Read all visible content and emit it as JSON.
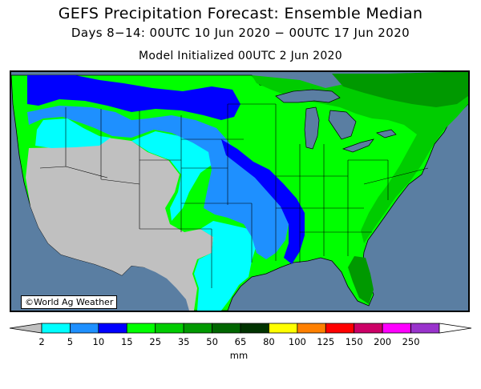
{
  "title": "GEFS Precipitation Forecast: Ensemble Median",
  "subtitle": "Days 8−14: 00UTC 10 Jun 2020 − 00UTC 17 Jun 2020",
  "init_line": "Model Initialized 00UTC 2 Jun 2020",
  "credit": "©World Ag Weather",
  "colorbar": {
    "unit": "mm",
    "ticks": [
      "2",
      "5",
      "10",
      "15",
      "25",
      "35",
      "50",
      "65",
      "80",
      "100",
      "125",
      "150",
      "200",
      "250"
    ],
    "colors": [
      "#00ffff",
      "#1e90ff",
      "#0000ff",
      "#00ff00",
      "#00cc00",
      "#009900",
      "#006600",
      "#003300",
      "#ffff00",
      "#ff8000",
      "#ff0000",
      "#cc0066",
      "#ff00ff",
      "#9933cc"
    ],
    "under_color": "#c0c0c0",
    "over_color": "#ffffff"
  },
  "map_colors": {
    "ocean": "#5a7ea2",
    "dry": "#c0c0c0",
    "cyan": "#00ffff",
    "lightblue": "#1e90ff",
    "blue": "#0000ff",
    "green": "#00ff00",
    "midgreen": "#00cc00",
    "darkgreen": "#009900"
  }
}
